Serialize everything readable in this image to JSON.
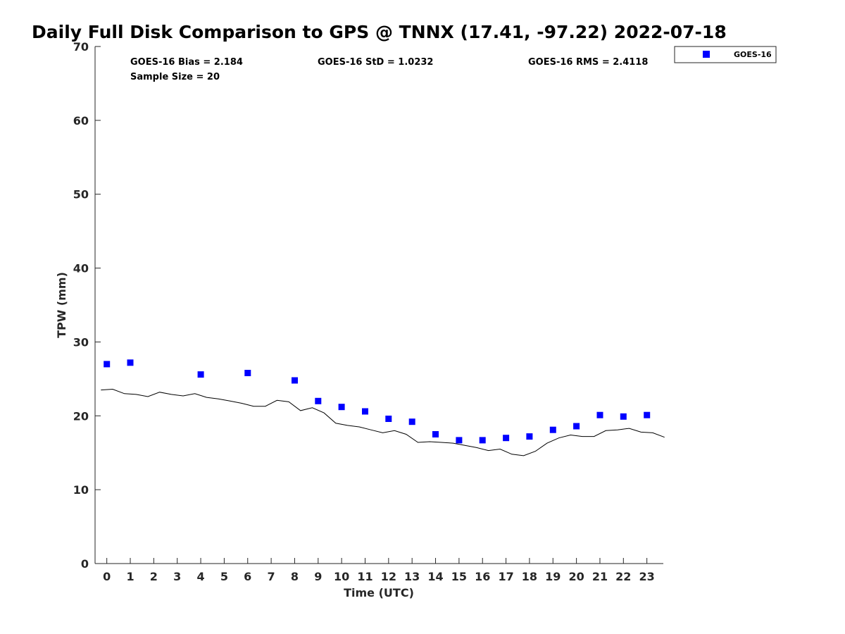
{
  "chart_data": {
    "type": "scatter",
    "title": "Daily Full Disk Comparison to GPS @ TNNX (17.41, -97.22) 2022-07-18",
    "xlabel": "Time (UTC)",
    "ylabel": "TPW (mm)",
    "xlim": [
      -0.5,
      23.7
    ],
    "ylim": [
      0,
      70
    ],
    "x_ticks": [
      0,
      1,
      2,
      3,
      4,
      5,
      6,
      7,
      8,
      9,
      10,
      11,
      12,
      13,
      14,
      15,
      16,
      17,
      18,
      19,
      20,
      21,
      22,
      23
    ],
    "y_ticks": [
      0,
      10,
      20,
      30,
      40,
      50,
      60,
      70
    ],
    "grid": false,
    "legend_position": "top-right",
    "series": [
      {
        "name": "GOES-16",
        "marker": "square",
        "color": "#0000ff",
        "x": [
          0,
          1,
          4,
          6,
          8,
          9,
          10,
          11,
          12,
          13,
          14,
          15,
          16,
          17,
          18,
          19,
          20,
          21,
          22,
          23
        ],
        "y": [
          27.0,
          27.2,
          25.6,
          25.8,
          24.8,
          22.0,
          21.2,
          20.6,
          19.6,
          19.2,
          17.5,
          16.7,
          16.7,
          17.0,
          17.2,
          18.1,
          18.6,
          20.1,
          19.9,
          20.1
        ]
      },
      {
        "line": true,
        "color": "#000000",
        "x": [
          -0.25,
          0.25,
          0.75,
          1.25,
          1.75,
          2.25,
          2.75,
          3.25,
          3.75,
          4.25,
          4.75,
          5.25,
          5.75,
          6.25,
          6.75,
          7.25,
          7.75,
          8.25,
          8.75,
          9.25,
          9.75,
          10.25,
          10.75,
          11.25,
          11.75,
          12.25,
          12.75,
          13.25,
          13.75,
          14.25,
          14.75,
          15.25,
          15.75,
          16.25,
          16.75,
          17.25,
          17.75,
          18.25,
          18.75,
          19.25,
          19.75,
          20.25,
          20.75,
          21.25,
          21.75,
          22.25,
          22.75,
          23.25,
          23.75
        ],
        "y": [
          23.5,
          23.6,
          23.0,
          22.9,
          22.6,
          23.2,
          22.9,
          22.7,
          23.0,
          22.5,
          22.3,
          22.0,
          21.7,
          21.3,
          21.3,
          22.1,
          21.9,
          20.7,
          21.1,
          20.4,
          19.0,
          18.7,
          18.5,
          18.1,
          17.7,
          18.0,
          17.5,
          16.4,
          16.5,
          16.4,
          16.3,
          16.0,
          15.7,
          15.3,
          15.5,
          14.8,
          14.6,
          15.2,
          16.3,
          17.0,
          17.4,
          17.2,
          17.2,
          18.0,
          18.1,
          18.3,
          17.8,
          17.7,
          17.1
        ]
      }
    ],
    "annotations": {
      "bias": "GOES-16 Bias = 2.184",
      "std": "GOES-16 StD = 1.0232",
      "rms": "GOES-16 RMS = 2.4118",
      "sample_size": "Sample Size = 20"
    }
  }
}
